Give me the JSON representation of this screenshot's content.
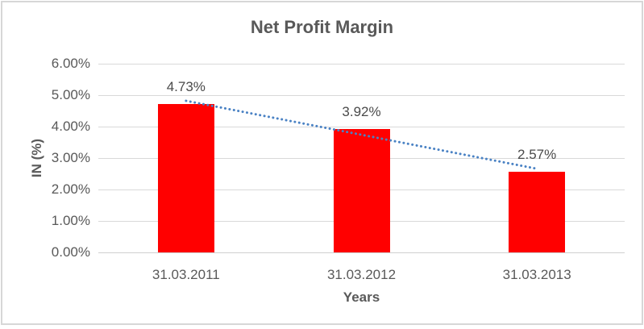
{
  "chart_data": {
    "type": "bar",
    "title": "Net Profit Margin",
    "xlabel": "Years",
    "ylabel": "IN (%)",
    "categories": [
      "31.03.2011",
      "31.03.2012",
      "31.03.2013"
    ],
    "values": [
      4.73,
      3.92,
      2.57
    ],
    "data_labels": [
      "4.73%",
      "3.92%",
      "2.57%"
    ],
    "yticks": [
      "0.00%",
      "1.00%",
      "2.00%",
      "3.00%",
      "4.00%",
      "5.00%",
      "6.00%"
    ],
    "ylim": [
      0,
      6
    ],
    "grid": true,
    "legend_position": "none",
    "trendline": {
      "type": "linear",
      "style": "dotted"
    },
    "colors": {
      "bar": "#ff0000",
      "trendline": "#4a82c4",
      "gridline": "#d9d9d9",
      "axis_line": "#d0d0d0",
      "axis_text": "#595959",
      "data_label_text": "#4a4a4a",
      "title_text": "#595959",
      "border": "#d7d7d7",
      "background": "#ffffff"
    }
  }
}
